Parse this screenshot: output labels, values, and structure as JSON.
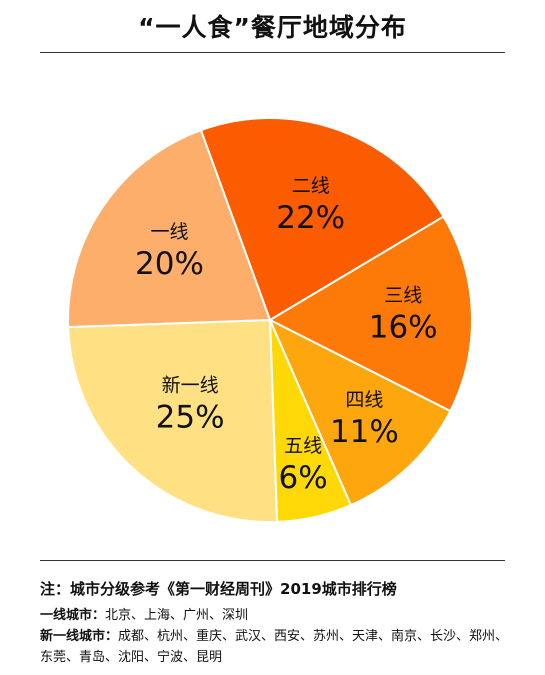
{
  "title": "“一人食”餐厅地域分布",
  "chart_data": {
    "type": "pie",
    "title": "“一人食”餐厅地域分布",
    "slices": [
      {
        "label": "二线",
        "value": 22,
        "value_label": "22%",
        "color": "#fc5c00"
      },
      {
        "label": "三线",
        "value": 16,
        "value_label": "16%",
        "color": "#fd7a09"
      },
      {
        "label": "四线",
        "value": 11,
        "value_label": "11%",
        "color": "#fea60e"
      },
      {
        "label": "五线",
        "value": 6,
        "value_label": "6%",
        "color": "#ffd808"
      },
      {
        "label": "新一线",
        "value": 25,
        "value_label": "25%",
        "color": "#ffe183"
      },
      {
        "label": "一线",
        "value": 20,
        "value_label": "20%",
        "color": "#fdae6a"
      }
    ]
  },
  "notes": {
    "main": "注：城市分级参考《第一财经周刊》2019城市排行榜",
    "tier1_label": "一线城市：",
    "tier1_cities": "北京、上海、广州、深圳",
    "newtier1_label": "新一线城市：",
    "newtier1_cities": "成都、杭州、重庆、武汉、西安、苏州、天津、南京、长沙、郑州、东莞、青岛、沈阳、宁波、昆明"
  }
}
